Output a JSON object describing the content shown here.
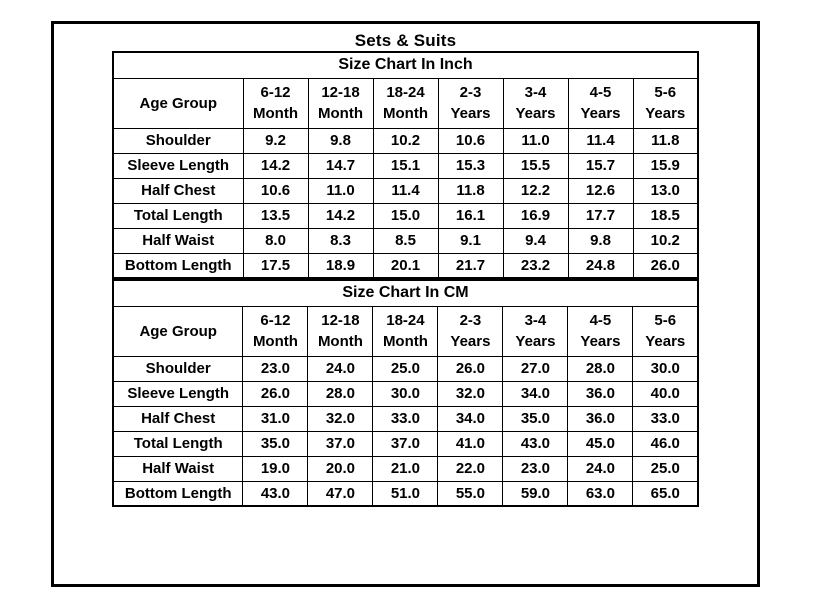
{
  "page": {
    "title": "Sets & Suits"
  },
  "colors": {
    "text": "#000000",
    "background": "#ffffff",
    "border": "#000000"
  },
  "tables": [
    {
      "title": "Size Chart In Inch",
      "age_group_label": "Age Group",
      "columns": [
        {
          "top": "6-12",
          "bottom": "Month"
        },
        {
          "top": "12-18",
          "bottom": "Month"
        },
        {
          "top": "18-24",
          "bottom": "Month"
        },
        {
          "top": "2-3",
          "bottom": "Years"
        },
        {
          "top": "3-4",
          "bottom": "Years"
        },
        {
          "top": "4-5",
          "bottom": "Years"
        },
        {
          "top": "5-6",
          "bottom": "Years"
        }
      ],
      "rows": [
        {
          "label": "Shoulder",
          "values": [
            "9.2",
            "9.8",
            "10.2",
            "10.6",
            "11.0",
            "11.4",
            "11.8"
          ]
        },
        {
          "label": "Sleeve Length",
          "values": [
            "14.2",
            "14.7",
            "15.1",
            "15.3",
            "15.5",
            "15.7",
            "15.9"
          ]
        },
        {
          "label": "Half Chest",
          "values": [
            "10.6",
            "11.0",
            "11.4",
            "11.8",
            "12.2",
            "12.6",
            "13.0"
          ]
        },
        {
          "label": "Total Length",
          "values": [
            "13.5",
            "14.2",
            "15.0",
            "16.1",
            "16.9",
            "17.7",
            "18.5"
          ]
        },
        {
          "label": "Half Waist",
          "values": [
            "8.0",
            "8.3",
            "8.5",
            "9.1",
            "9.4",
            "9.8",
            "10.2"
          ]
        },
        {
          "label": "Bottom Length",
          "values": [
            "17.5",
            "18.9",
            "20.1",
            "21.7",
            "23.2",
            "24.8",
            "26.0"
          ]
        }
      ]
    },
    {
      "title": "Size Chart In CM",
      "age_group_label": "Age Group",
      "columns": [
        {
          "top": "6-12",
          "bottom": "Month"
        },
        {
          "top": "12-18",
          "bottom": "Month"
        },
        {
          "top": "18-24",
          "bottom": "Month"
        },
        {
          "top": "2-3",
          "bottom": "Years"
        },
        {
          "top": "3-4",
          "bottom": "Years"
        },
        {
          "top": "4-5",
          "bottom": "Years"
        },
        {
          "top": "5-6",
          "bottom": "Years"
        }
      ],
      "rows": [
        {
          "label": "Shoulder",
          "values": [
            "23.0",
            "24.0",
            "25.0",
            "26.0",
            "27.0",
            "28.0",
            "30.0"
          ]
        },
        {
          "label": "Sleeve Length",
          "values": [
            "26.0",
            "28.0",
            "30.0",
            "32.0",
            "34.0",
            "36.0",
            "40.0"
          ]
        },
        {
          "label": "Half Chest",
          "values": [
            "31.0",
            "32.0",
            "33.0",
            "34.0",
            "35.0",
            "36.0",
            "33.0"
          ]
        },
        {
          "label": "Total Length",
          "values": [
            "35.0",
            "37.0",
            "37.0",
            "41.0",
            "43.0",
            "45.0",
            "46.0"
          ]
        },
        {
          "label": "Half Waist",
          "values": [
            "19.0",
            "20.0",
            "21.0",
            "22.0",
            "23.0",
            "24.0",
            "25.0"
          ]
        },
        {
          "label": "Bottom Length",
          "values": [
            "43.0",
            "47.0",
            "51.0",
            "55.0",
            "59.0",
            "63.0",
            "65.0"
          ]
        }
      ]
    }
  ]
}
